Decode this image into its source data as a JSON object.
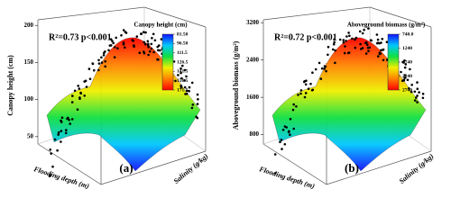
{
  "chart_data": [
    {
      "type": "surface",
      "annotation": "R²=0.73  p<0.001",
      "panel_label": "(a)",
      "zlabel": "Canopy height (cm)",
      "xlabel": "Flooding depth (m)",
      "ylabel": "Salinity (g/kg)",
      "zlim": [
        40,
        210
      ],
      "zticks": [
        50,
        100,
        150,
        200
      ],
      "colormap": [
        "#1010ff",
        "#00c8ff",
        "#10e040",
        "#f0f000",
        "#ff8000",
        "#ff0000"
      ],
      "colorbar": {
        "title": "Canopy height (cm)",
        "lim": [
          81.5,
          171.5
        ],
        "ticks": [
          {
            "value": 81.5,
            "label": "81.50"
          },
          {
            "value": 96.5,
            "label": "96.50"
          },
          111.5,
          126.5,
          141.5,
          156.5,
          171.5
        ]
      }
    },
    {
      "type": "surface",
      "annotation": "R²=0.72  p<0.001",
      "panel_label": "(b)",
      "zlabel": "Aboveground biomass (g/m²)",
      "xlabel": "Flooding depth (m)",
      "ylabel": "Salinity (g/kg)",
      "zlim": [
        600,
        3300
      ],
      "zticks": [
        800,
        1600,
        2400,
        3200
      ],
      "colormap": [
        "#1010ff",
        "#00c8ff",
        "#10e040",
        "#f0f000",
        "#ff8000",
        "#ff0000"
      ],
      "colorbar": {
        "title": "Aboveground biomass (g/m²)",
        "lim": [
          740,
          2740
        ],
        "ticks": [
          {
            "value": 740,
            "label": "740.0"
          },
          1240,
          1740,
          2240,
          2740
        ]
      }
    }
  ]
}
